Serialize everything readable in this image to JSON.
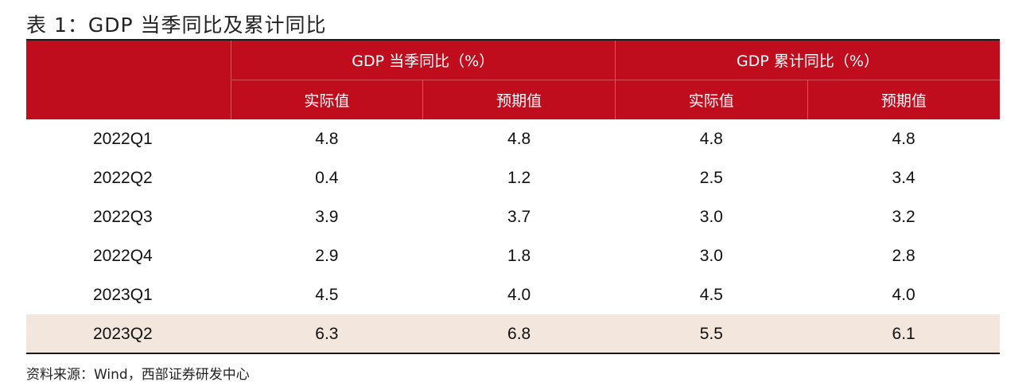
{
  "title": "表 1：GDP 当季同比及累计同比",
  "header": {
    "group1": "GDP 当季同比（%）",
    "group2": "GDP 累计同比（%）",
    "sub": [
      "实际值",
      "预期值",
      "实际值",
      "预期值"
    ]
  },
  "rows": [
    {
      "label": "2022Q1",
      "values": [
        "4.8",
        "4.8",
        "4.8",
        "4.8"
      ]
    },
    {
      "label": "2022Q2",
      "values": [
        "0.4",
        "1.2",
        "2.5",
        "3.4"
      ]
    },
    {
      "label": "2022Q3",
      "values": [
        "3.9",
        "3.7",
        "3.0",
        "3.2"
      ]
    },
    {
      "label": "2022Q4",
      "values": [
        "2.9",
        "1.8",
        "3.0",
        "2.8"
      ]
    },
    {
      "label": "2023Q1",
      "values": [
        "4.5",
        "4.0",
        "4.5",
        "4.0"
      ]
    },
    {
      "label": "2023Q2",
      "values": [
        "6.3",
        "6.8",
        "5.5",
        "6.1"
      ]
    }
  ],
  "highlight_row": "2023Q2",
  "source": "资料来源：Wind，西部证券研发中心",
  "colors": {
    "header_bg": "#c00d1e",
    "highlight_bg": "#f3e6dc"
  }
}
